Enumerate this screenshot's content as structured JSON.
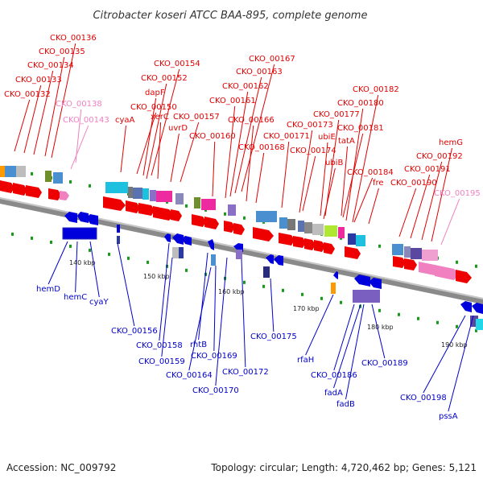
{
  "title": "Citrobacter koseri ATCC BAA-895, complete genome",
  "footer": {
    "accession": "Accession: NC_009792",
    "summary": "Topology: circular; Length: 4,720,462 bp; Genes: 5,121"
  },
  "colors": {
    "forward_label": "#e00000",
    "reverse_label": "#0000cc",
    "rna_label": "#f080c0",
    "backbone": "#8a8a8a",
    "forward_arrow": "#ee0000",
    "reverse_arrow": "#0000dd"
  },
  "ticks": [
    "140 kbp",
    "150 kbp",
    "160 kbp",
    "170 kbp",
    "180 kbp",
    "190 kbp"
  ],
  "top_labels": [
    {
      "text": "CKO_00136",
      "kind": "forward"
    },
    {
      "text": "CKO_00135",
      "kind": "forward"
    },
    {
      "text": "CKO_00134",
      "kind": "forward"
    },
    {
      "text": "CKO_00133",
      "kind": "forward"
    },
    {
      "text": "CKO_00132",
      "kind": "forward"
    },
    {
      "text": "CKO_00138",
      "kind": "rna"
    },
    {
      "text": "CKO_00143",
      "kind": "rna"
    },
    {
      "text": "CKO_00154",
      "kind": "forward"
    },
    {
      "text": "CKO_00152",
      "kind": "forward"
    },
    {
      "text": "dapF",
      "kind": "forward"
    },
    {
      "text": "cyaA",
      "kind": "forward"
    },
    {
      "text": "CKO_00150",
      "kind": "forward"
    },
    {
      "text": "xerC",
      "kind": "forward"
    },
    {
      "text": "CKO_00157",
      "kind": "forward"
    },
    {
      "text": "uvrD",
      "kind": "forward"
    },
    {
      "text": "CKO_00167",
      "kind": "forward"
    },
    {
      "text": "CKO_00163",
      "kind": "forward"
    },
    {
      "text": "CKO_00162",
      "kind": "forward"
    },
    {
      "text": "CKO_00161",
      "kind": "forward"
    },
    {
      "text": "CKO_00166",
      "kind": "forward"
    },
    {
      "text": "CKO_00160",
      "kind": "forward"
    },
    {
      "text": "CKO_00168",
      "kind": "forward"
    },
    {
      "text": "CKO_00171",
      "kind": "forward"
    },
    {
      "text": "CKO_00173",
      "kind": "forward"
    },
    {
      "text": "CKO_00177",
      "kind": "forward"
    },
    {
      "text": "CKO_00182",
      "kind": "forward"
    },
    {
      "text": "CKO_00180",
      "kind": "forward"
    },
    {
      "text": "ubiE",
      "kind": "forward"
    },
    {
      "text": "CKO_00181",
      "kind": "forward"
    },
    {
      "text": "CKO_00174",
      "kind": "forward"
    },
    {
      "text": "tatA",
      "kind": "forward"
    },
    {
      "text": "ubiB",
      "kind": "forward"
    },
    {
      "text": "CKO_00184",
      "kind": "forward"
    },
    {
      "text": "fre",
      "kind": "forward"
    },
    {
      "text": "hemG",
      "kind": "forward"
    },
    {
      "text": "CKO_00192",
      "kind": "forward"
    },
    {
      "text": "CKO_00191",
      "kind": "forward"
    },
    {
      "text": "CKO_00190",
      "kind": "forward"
    },
    {
      "text": "CKO_00195",
      "kind": "rna"
    }
  ],
  "bottom_labels": [
    {
      "text": "hemD"
    },
    {
      "text": "hemC"
    },
    {
      "text": "cyaY"
    },
    {
      "text": "CKO_00156"
    },
    {
      "text": "CKO_00158"
    },
    {
      "text": "rhtB"
    },
    {
      "text": "CKO_00159"
    },
    {
      "text": "CKO_00169"
    },
    {
      "text": "CKO_00164"
    },
    {
      "text": "CKO_00172"
    },
    {
      "text": "CKO_00170"
    },
    {
      "text": "CKO_00175"
    },
    {
      "text": "rfaH"
    },
    {
      "text": "CKO_00186"
    },
    {
      "text": "fadA"
    },
    {
      "text": "fadB"
    },
    {
      "text": "CKO_00189"
    },
    {
      "text": "CKO_00198"
    },
    {
      "text": "pssA"
    }
  ]
}
